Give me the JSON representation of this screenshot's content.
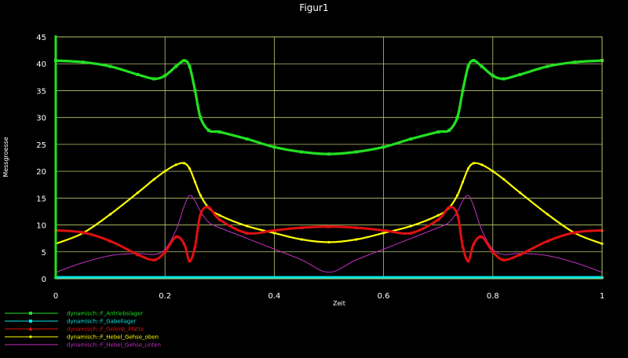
{
  "chart_data": {
    "type": "line",
    "title": "Figur1",
    "xlabel": "Zeit",
    "ylabel": "Messgroesse",
    "xlim": [
      0,
      1
    ],
    "ylim": [
      0,
      45
    ],
    "xticks": [
      0,
      0.2,
      0.4,
      0.6,
      0.8,
      1
    ],
    "xtick_labels": [
      "0",
      "0.2",
      "0.4",
      "0.6",
      "0.8",
      "1"
    ],
    "yticks": [
      0,
      5,
      10,
      15,
      20,
      25,
      30,
      35,
      40,
      45
    ],
    "ytick_labels": [
      "0",
      "5",
      "10",
      "15",
      "20",
      "25",
      "30",
      "35",
      "40",
      "45"
    ],
    "grid": true,
    "legend_position": "bottom-left",
    "background": "#000000",
    "grid_color": "#b8c86c",
    "x": [
      0,
      0.05,
      0.1,
      0.15,
      0.18,
      0.2,
      0.22,
      0.235,
      0.245,
      0.255,
      0.265,
      0.28,
      0.3,
      0.35,
      0.4,
      0.45,
      0.5,
      0.55,
      0.6,
      0.65,
      0.7,
      0.72,
      0.735,
      0.745,
      0.755,
      0.765,
      0.78,
      0.8,
      0.82,
      0.85,
      0.9,
      0.95,
      1
    ],
    "series": [
      {
        "name": "dynamisch::F_Antriebslager",
        "color": "#22e022",
        "marker": "square",
        "values": [
          40.6,
          40.3,
          39.5,
          38.0,
          37.2,
          37.8,
          39.5,
          40.6,
          39.5,
          35.0,
          30.0,
          27.6,
          27.3,
          26.0,
          24.5,
          23.6,
          23.2,
          23.6,
          24.5,
          26.0,
          27.3,
          27.6,
          30.0,
          35.0,
          39.5,
          40.6,
          39.5,
          37.8,
          37.2,
          38.0,
          39.5,
          40.3,
          40.6
        ]
      },
      {
        "name": "dynamisch::F_Gabellager",
        "color": "#00e5e5",
        "marker": "square",
        "values": [
          0.2,
          0.2,
          0.2,
          0.2,
          0.2,
          0.2,
          0.2,
          0.2,
          0.2,
          0.2,
          0.2,
          0.2,
          0.2,
          0.2,
          0.2,
          0.2,
          0.2,
          0.2,
          0.2,
          0.2,
          0.2,
          0.2,
          0.2,
          0.2,
          0.2,
          0.2,
          0.2,
          0.2,
          0.2,
          0.2,
          0.2,
          0.2,
          0.2
        ]
      },
      {
        "name": "dynamisch::F_Gelenk_Platte",
        "color": "#e01010",
        "marker": "triangle",
        "values": [
          9.0,
          8.6,
          7.0,
          4.5,
          3.5,
          5.0,
          7.8,
          6.5,
          3.3,
          6.0,
          12.0,
          13.3,
          11.0,
          8.5,
          9.0,
          9.5,
          9.7,
          9.5,
          9.0,
          8.5,
          11.0,
          13.3,
          12.0,
          6.0,
          3.3,
          6.5,
          7.8,
          5.0,
          3.5,
          4.5,
          7.0,
          8.6,
          9.0
        ]
      },
      {
        "name": "dynamisch::F_Hebel_Gehse_oben",
        "color": "#ffff00",
        "marker": "dot",
        "values": [
          6.5,
          8.5,
          12.0,
          16.0,
          18.5,
          20.0,
          21.2,
          21.5,
          20.5,
          18.0,
          15.5,
          13.2,
          11.8,
          9.8,
          8.5,
          7.3,
          6.8,
          7.3,
          8.5,
          9.8,
          11.8,
          13.2,
          15.5,
          18.0,
          20.5,
          21.5,
          21.2,
          20.0,
          18.5,
          16.0,
          12.0,
          8.5,
          6.5
        ]
      },
      {
        "name": "dynamisch::F_Hebel_Gehse_unten",
        "color": "#c030c0",
        "marker": "none",
        "values": [
          1.2,
          3.0,
          4.3,
          4.7,
          4.5,
          5.5,
          9.0,
          13.5,
          15.5,
          14.5,
          12.5,
          10.5,
          9.5,
          7.5,
          5.5,
          3.5,
          1.2,
          3.5,
          5.5,
          7.5,
          9.5,
          10.5,
          12.5,
          14.5,
          15.5,
          13.5,
          9.0,
          5.5,
          4.5,
          4.7,
          4.3,
          3.0,
          1.2
        ]
      }
    ]
  }
}
